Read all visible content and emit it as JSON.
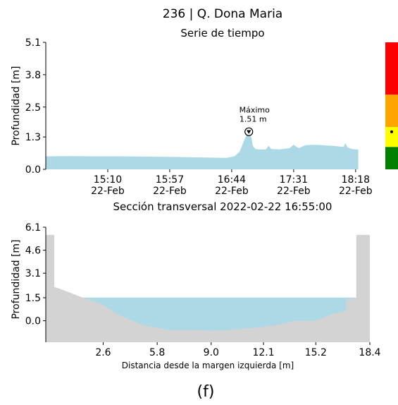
{
  "page": {
    "title": "236 | Q. Dona Maria",
    "caption": "(f)"
  },
  "chart_data": [
    {
      "type": "area",
      "title": "Serie de tiempo",
      "ylabel": "Profundidad [m]",
      "xlabel": "",
      "ylim": [
        0,
        5.1
      ],
      "y_ticks": [
        "0.0",
        "1.3",
        "2.5",
        "3.8",
        "5.1"
      ],
      "x_ticks": [
        {
          "time": "15:10",
          "date": "22-Feb"
        },
        {
          "time": "15:57",
          "date": "22-Feb"
        },
        {
          "time": "16:44",
          "date": "22-Feb"
        },
        {
          "time": "17:31",
          "date": "22-Feb"
        },
        {
          "time": "18:18",
          "date": "22-Feb"
        }
      ],
      "x_range": [
        "14:23",
        "18:40"
      ],
      "fill_color": "#add8e6",
      "series": [
        {
          "x": [
            "14:23",
            "14:40",
            "15:00",
            "15:20",
            "15:40",
            "16:00",
            "16:20",
            "16:40",
            "16:46",
            "16:50",
            "16:53",
            "16:55",
            "16:57",
            "16:59",
            "17:00",
            "17:02",
            "17:05",
            "17:10",
            "17:12",
            "17:14",
            "17:20",
            "17:28",
            "17:30",
            "17:31",
            "17:35",
            "17:40",
            "17:45",
            "17:50",
            "17:55",
            "18:00",
            "18:05",
            "18:09",
            "18:10",
            "18:12",
            "18:15",
            "18:18",
            "18:20"
          ],
          "values": [
            0.52,
            0.53,
            0.52,
            0.52,
            0.51,
            0.5,
            0.48,
            0.46,
            0.52,
            0.7,
            1.1,
            1.35,
            1.5,
            1.25,
            0.95,
            0.82,
            0.8,
            0.8,
            0.95,
            0.82,
            0.8,
            0.85,
            0.95,
            0.98,
            0.85,
            0.97,
            0.98,
            0.98,
            0.96,
            0.95,
            0.92,
            0.9,
            1.05,
            0.88,
            0.82,
            0.8,
            0.8
          ]
        }
      ],
      "annotation": {
        "label": "Máximo",
        "value_text": "1.51 m",
        "time": "16:57",
        "value": 1.51
      },
      "level_scale": {
        "bands": [
          {
            "from": 0,
            "to": 0.9,
            "color": "#008000"
          },
          {
            "from": 0.9,
            "to": 1.7,
            "color": "#ffff00"
          },
          {
            "from": 1.7,
            "to": 3.0,
            "color": "#ffa500"
          },
          {
            "from": 3.0,
            "to": 5.1,
            "color": "#ff0000"
          }
        ],
        "current_value": 1.51
      }
    },
    {
      "type": "area",
      "title": "Sección transversal 2022-02-22 16:55:00",
      "ylabel": "Profundidad [m]",
      "xlabel": "Distancia desde la margen izquierda [m]",
      "ylim": [
        -1.4,
        6.1
      ],
      "xlim": [
        -0.8,
        18.4
      ],
      "y_ticks": [
        "0.0",
        "1.5",
        "3.1",
        "4.6",
        "6.1"
      ],
      "x_ticks": [
        "2.6",
        "5.8",
        "9.0",
        "12.1",
        "15.2",
        "18.4"
      ],
      "water_level": 1.51,
      "water_color": "#add8e6",
      "ground_color": "#d3d3d3",
      "ground_profile": {
        "x": [
          -0.8,
          -0.3,
          -0.3,
          0.0,
          1.4,
          2.5,
          3.5,
          5.0,
          6.5,
          8.0,
          9.0,
          10.0,
          11.0,
          12.1,
          13.0,
          14.0,
          15.2,
          16.3,
          16.8,
          17.0,
          17.0,
          17.6,
          17.6,
          18.0,
          18.4
        ],
        "y": [
          5.6,
          5.6,
          2.2,
          2.1,
          1.5,
          1.1,
          0.4,
          -0.3,
          -0.6,
          -0.6,
          -0.65,
          -0.6,
          -0.5,
          -0.4,
          -0.25,
          0.0,
          0.0,
          0.5,
          0.6,
          0.7,
          1.4,
          1.5,
          5.6,
          5.6,
          5.6
        ]
      }
    }
  ]
}
